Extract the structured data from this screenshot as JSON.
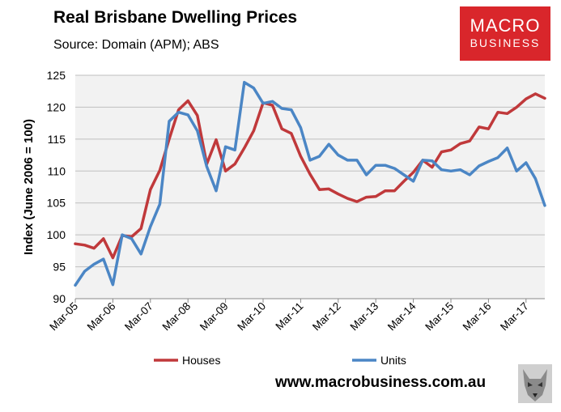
{
  "header": {
    "title": "Real Brisbane Dwelling Prices",
    "subtitle": "Source: Domain (APM); ABS"
  },
  "logo": {
    "line1": "MACRO",
    "line2": "BUSINESS"
  },
  "footer": {
    "url": "www.macrobusiness.com.au"
  },
  "colors": {
    "houses": "#c0393b",
    "units": "#4b86c5",
    "plot_bg": "#f2f2f2",
    "grid": "#bfbfbf",
    "brand": "#d9262b"
  },
  "chart_data": {
    "type": "line",
    "title": "Real Brisbane Dwelling Prices",
    "xlabel": "",
    "ylabel": "Index (June 2006 = 100)",
    "ylim": [
      90,
      125
    ],
    "yticks": [
      90,
      95,
      100,
      105,
      110,
      115,
      120,
      125
    ],
    "x_tick_labels": [
      "Mar-05",
      "Mar-06",
      "Mar-07",
      "Mar-08",
      "Mar-09",
      "Mar-10",
      "Mar-11",
      "Mar-12",
      "Mar-13",
      "Mar-14",
      "Mar-15",
      "Mar-16",
      "Mar-17"
    ],
    "legend_position": "bottom",
    "series": [
      {
        "name": "Houses",
        "values": [
          98.6,
          98.4,
          97.9,
          99.4,
          96.4,
          99.9,
          99.7,
          101.0,
          107.1,
          110.1,
          115.0,
          119.6,
          121.0,
          118.7,
          111.1,
          114.9,
          110.0,
          111.1,
          113.6,
          116.3,
          120.7,
          120.3,
          116.6,
          115.9,
          112.3,
          109.5,
          107.1,
          107.2,
          106.4,
          105.7,
          105.2,
          105.9,
          106.0,
          106.9,
          106.9,
          108.4,
          109.8,
          111.7,
          110.6,
          113.0,
          113.3,
          114.3,
          114.7,
          116.9,
          116.6,
          119.2,
          119.0,
          120.0,
          121.3,
          122.1,
          121.4
        ]
      },
      {
        "name": "Units",
        "values": [
          92.1,
          94.3,
          95.4,
          96.2,
          92.2,
          100.0,
          99.4,
          97.0,
          101.3,
          104.8,
          117.8,
          119.2,
          118.8,
          116.3,
          110.7,
          106.9,
          113.8,
          113.3,
          123.9,
          123.0,
          120.6,
          120.9,
          119.8,
          119.6,
          116.8,
          111.7,
          112.3,
          114.2,
          112.5,
          111.7,
          111.7,
          109.4,
          110.9,
          110.9,
          110.4,
          109.4,
          108.4,
          111.7,
          111.6,
          110.2,
          110.0,
          110.2,
          109.4,
          110.8,
          111.5,
          112.1,
          113.6,
          110.0,
          111.3,
          108.8,
          104.6
        ]
      }
    ]
  }
}
